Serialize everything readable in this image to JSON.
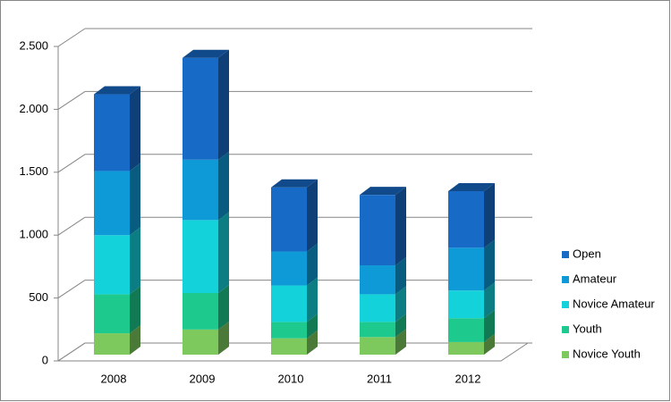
{
  "chart_data": {
    "type": "bar3d-stacked",
    "categories": [
      "2008",
      "2009",
      "2010",
      "2011",
      "2012"
    ],
    "series": [
      {
        "name": "Novice Youth",
        "color": "#7dc95e",
        "values": [
          170,
          200,
          130,
          140,
          100
        ]
      },
      {
        "name": "Youth",
        "color": "#1ec98e",
        "values": [
          310,
          290,
          130,
          120,
          190
        ]
      },
      {
        "name": "Novice Amateur",
        "color": "#14d2da",
        "values": [
          470,
          580,
          290,
          220,
          220
        ]
      },
      {
        "name": "Amateur",
        "color": "#0d9ad6",
        "values": [
          510,
          480,
          270,
          230,
          340
        ]
      },
      {
        "name": "Open",
        "color": "#176ac6",
        "values": [
          610,
          810,
          510,
          560,
          450
        ]
      }
    ],
    "ylim": [
      0,
      2500
    ],
    "yticks": [
      0,
      500,
      {
        "value": 1000,
        "label": "1.000"
      },
      {
        "value": 1500,
        "label": "1.500"
      },
      {
        "value": 2000,
        "label": "2.000"
      },
      {
        "value": 2500,
        "label": "2.500"
      }
    ],
    "grid": true
  }
}
